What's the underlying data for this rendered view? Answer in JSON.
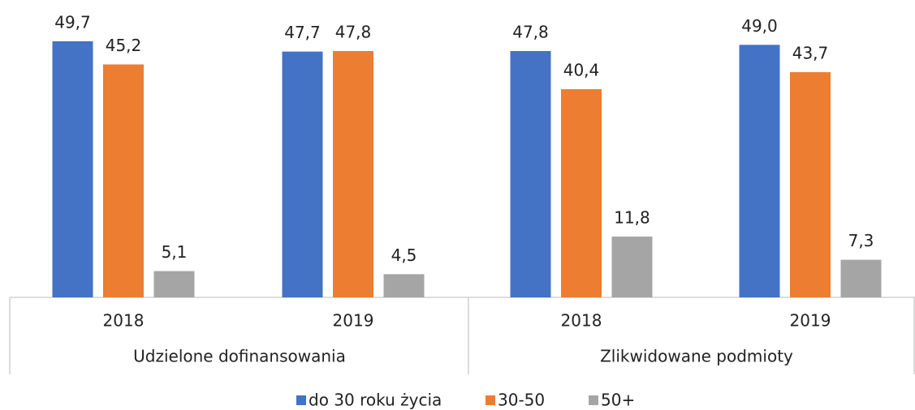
{
  "chart_data": {
    "type": "bar",
    "categories": [
      "2018",
      "2019",
      "2018",
      "2019"
    ],
    "group_labels": [
      "Udzielone dofinansowania",
      "Zlikwidowane podmioty"
    ],
    "series": [
      {
        "name": "do 30 roku życia",
        "color": "#4472c4",
        "values": [
          49.7,
          47.7,
          47.8,
          49.0
        ],
        "value_labels": [
          "49,7",
          "47,7",
          "47,8",
          "49,0"
        ]
      },
      {
        "name": "30-50",
        "color": "#ed7d31",
        "values": [
          45.2,
          47.8,
          40.4,
          43.7
        ],
        "value_labels": [
          "45,2",
          "47,8",
          "40,4",
          "43,7"
        ]
      },
      {
        "name": "50+",
        "color": "#a5a5a5",
        "values": [
          5.1,
          4.5,
          11.8,
          7.3
        ],
        "value_labels": [
          "5,1",
          "4,5",
          "11,8",
          "7,3"
        ]
      }
    ],
    "legend": "bottom"
  }
}
